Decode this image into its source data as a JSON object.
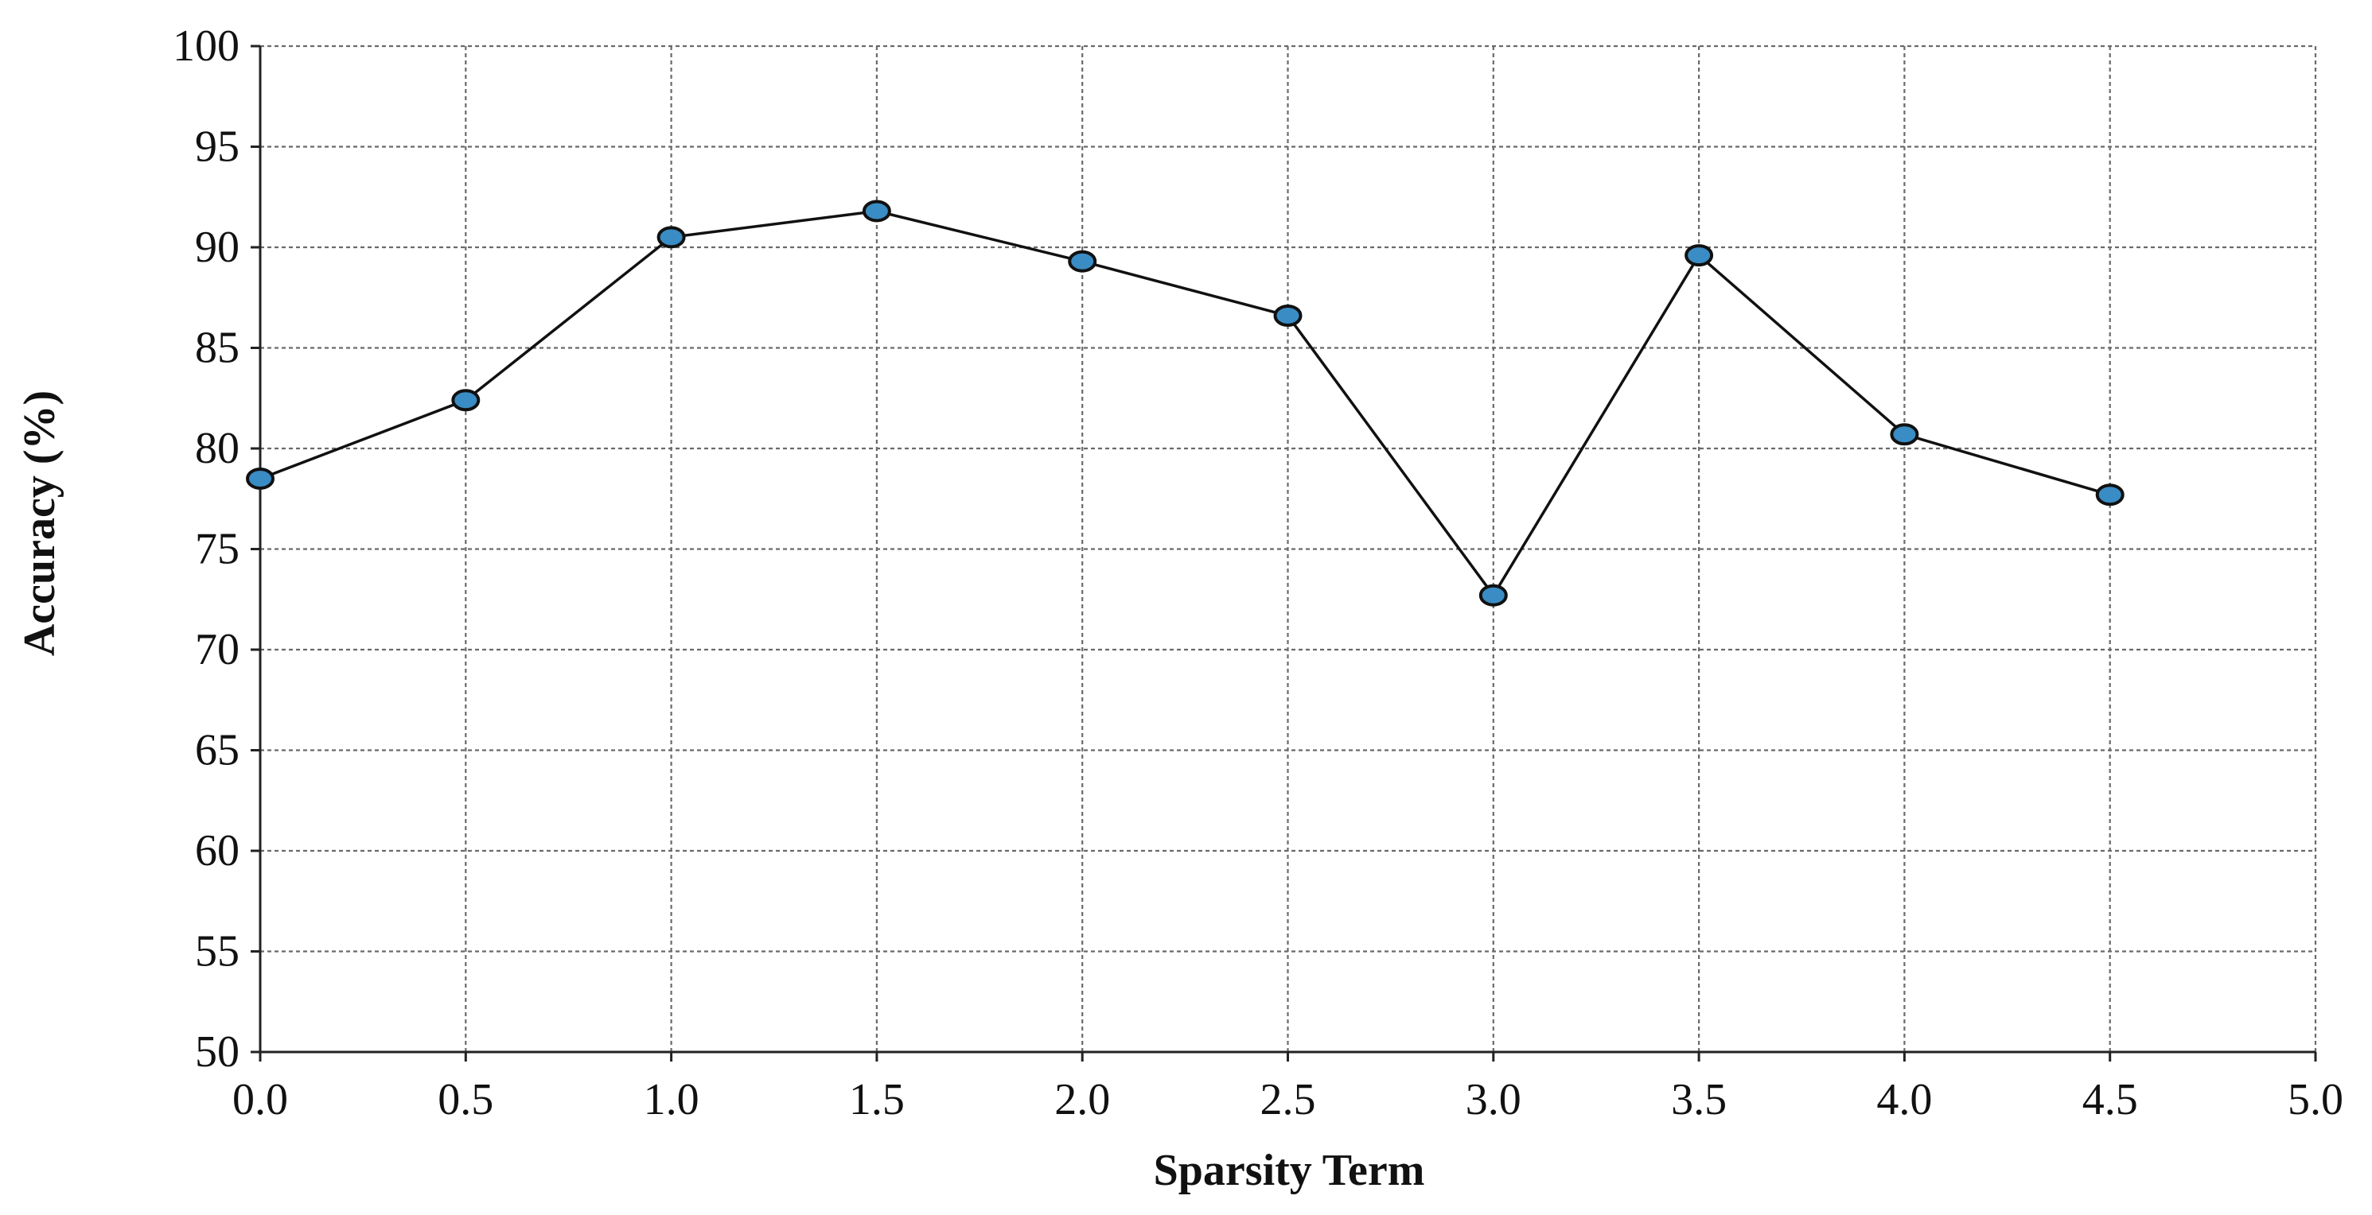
{
  "chart_data": {
    "type": "line",
    "title": "",
    "xlabel": "Sparsity Term",
    "ylabel": "Accuracy (%)",
    "xlim": [
      0.0,
      5.0
    ],
    "ylim": [
      50,
      100
    ],
    "x_ticks": [
      "0.0",
      "0.5",
      "1.0",
      "1.5",
      "2.0",
      "2.5",
      "3.0",
      "3.5",
      "4.0",
      "4.5",
      "5.0"
    ],
    "y_ticks": [
      "50",
      "55",
      "60",
      "65",
      "70",
      "75",
      "80",
      "85",
      "90",
      "95",
      "100"
    ],
    "grid": true,
    "legend": "none",
    "series": [
      {
        "x": [
          0.0,
          0.5,
          1.0,
          1.5,
          2.0,
          2.5,
          3.0,
          3.5,
          4.0,
          4.5
        ],
        "y": [
          78.5,
          82.4,
          90.5,
          91.8,
          89.3,
          86.6,
          72.7,
          89.6,
          80.7,
          77.7
        ],
        "line_color": "#111111",
        "marker_color": "#3a8cc4"
      }
    ]
  }
}
